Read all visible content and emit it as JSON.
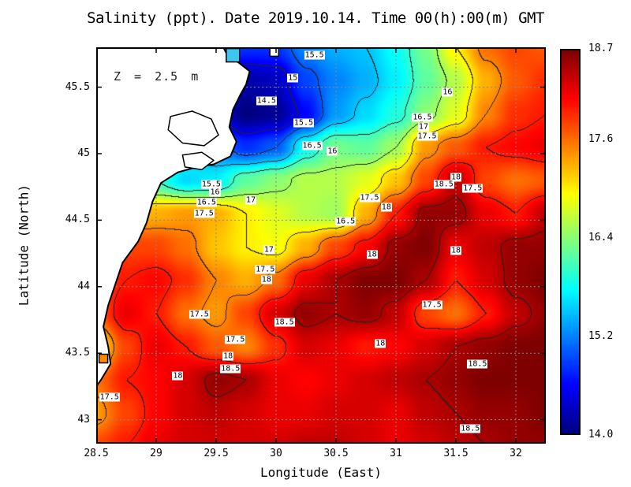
{
  "chart_data": {
    "type": "heatmap",
    "title": "Salinity (ppt). Date 2019.10.14. Time 00(h):00(m) GMT",
    "annotation": "Z = 2.5 m",
    "xlabel": "Longitude (East)",
    "ylabel": "Latitude (North)",
    "lon_range": [
      28.5,
      32.25
    ],
    "lat_range": [
      42.82,
      45.8
    ],
    "vmin": 14.0,
    "vmax": 18.7,
    "colormap": "jet",
    "contour_interval": 0.5,
    "contour_levels": [
      14.5,
      15,
      15.5,
      16,
      16.5,
      17,
      17.5,
      18,
      18.5
    ],
    "x_ticks": [
      {
        "v": 28.5,
        "label": "28.5"
      },
      {
        "v": 29,
        "label": "29"
      },
      {
        "v": 29.5,
        "label": "29.5"
      },
      {
        "v": 30,
        "label": "30"
      },
      {
        "v": 30.5,
        "label": "30.5"
      },
      {
        "v": 31,
        "label": "31"
      },
      {
        "v": 31.5,
        "label": "31.5"
      },
      {
        "v": 32,
        "label": "32"
      }
    ],
    "y_ticks": [
      {
        "v": 43,
        "label": "43"
      },
      {
        "v": 43.5,
        "label": "43.5"
      },
      {
        "v": 44,
        "label": "44"
      },
      {
        "v": 44.5,
        "label": "44.5"
      },
      {
        "v": 45,
        "label": "45"
      },
      {
        "v": 45.5,
        "label": "45.5"
      }
    ],
    "colorbar": {
      "min": 14.0,
      "max": 18.7,
      "ticks": [
        {
          "f": 1.0,
          "label": "18.7"
        },
        {
          "f": 0.766,
          "label": "17.6"
        },
        {
          "f": 0.511,
          "label": "16.4"
        },
        {
          "f": 0.255,
          "label": "15.2"
        },
        {
          "f": 0.0,
          "label": "14.0"
        }
      ]
    },
    "grid": {
      "lon": [
        28.5,
        28.75,
        29.0,
        29.25,
        29.5,
        29.75,
        30.0,
        30.25,
        30.5,
        30.75,
        31.0,
        31.25,
        31.5,
        31.75,
        32.0,
        32.25
      ],
      "lat": [
        45.8,
        45.55,
        45.3,
        45.05,
        44.8,
        44.55,
        44.3,
        44.05,
        43.8,
        43.55,
        43.3,
        43.05,
        42.8
      ],
      "values": [
        [
          16.0,
          16.0,
          16.0,
          15.5,
          15.0,
          14.8,
          14.8,
          15.2,
          15.4,
          15.5,
          15.8,
          16.3,
          17.0,
          17.6,
          17.8,
          17.7
        ],
        [
          16.0,
          16.0,
          15.8,
          15.2,
          14.6,
          14.2,
          14.3,
          14.9,
          15.2,
          15.4,
          15.7,
          16.2,
          16.6,
          17.3,
          17.7,
          17.9
        ],
        [
          16.0,
          16.0,
          15.5,
          15.0,
          14.5,
          14.0,
          14.1,
          14.6,
          15.3,
          15.6,
          15.9,
          16.4,
          16.8,
          17.5,
          17.9,
          18.0
        ],
        [
          16.5,
          16.3,
          16.0,
          15.8,
          15.2,
          14.8,
          15.0,
          15.8,
          16.3,
          16.2,
          16.5,
          17.4,
          17.7,
          18.0,
          18.1,
          18.2
        ],
        [
          16.5,
          16.4,
          16.0,
          15.6,
          15.7,
          16.2,
          16.4,
          16.6,
          16.6,
          16.8,
          17.2,
          17.8,
          18.4,
          17.8,
          17.6,
          17.7
        ],
        [
          17.0,
          17.2,
          17.3,
          17.4,
          17.3,
          17.0,
          16.8,
          16.6,
          16.5,
          17.3,
          18.0,
          18.6,
          18.6,
          18.2,
          18.0,
          18.4
        ],
        [
          17.6,
          17.8,
          17.8,
          17.6,
          17.2,
          17.0,
          16.9,
          17.3,
          17.8,
          18.1,
          18.6,
          18.7,
          18.2,
          18.4,
          18.6,
          18.6
        ],
        [
          17.8,
          18.0,
          18.1,
          17.9,
          17.5,
          17.3,
          17.6,
          18.2,
          18.5,
          18.7,
          18.7,
          18.5,
          18.0,
          18.3,
          18.6,
          18.7
        ],
        [
          17.7,
          18.2,
          18.0,
          17.6,
          17.4,
          17.8,
          18.3,
          18.6,
          18.5,
          18.6,
          18.4,
          17.8,
          17.6,
          18.0,
          18.4,
          18.6
        ],
        [
          17.0,
          17.8,
          18.2,
          18.0,
          17.7,
          17.5,
          17.9,
          18.3,
          18.2,
          18.0,
          18.1,
          18.3,
          18.5,
          18.6,
          18.7,
          18.7
        ],
        [
          17.6,
          18.0,
          18.1,
          18.3,
          18.6,
          18.5,
          18.2,
          18.1,
          18.2,
          18.3,
          18.4,
          18.5,
          18.6,
          18.7,
          18.7,
          18.7
        ],
        [
          17.4,
          17.8,
          18.1,
          18.3,
          18.4,
          18.3,
          18.2,
          18.2,
          18.3,
          18.3,
          18.2,
          18.4,
          18.5,
          18.6,
          18.6,
          18.7
        ],
        [
          17.8,
          18.0,
          18.2,
          18.3,
          18.3,
          18.3,
          18.3,
          18.4,
          18.4,
          18.3,
          18.2,
          18.3,
          18.4,
          18.5,
          18.6,
          18.6
        ]
      ]
    },
    "contour_labels": [
      {
        "v": "15.5",
        "lon": 30.32,
        "lat": 45.74
      },
      {
        "v": "15",
        "lon": 30.14,
        "lat": 45.57
      },
      {
        "v": "14.5",
        "lon": 29.92,
        "lat": 45.4
      },
      {
        "v": "15.5",
        "lon": 30.23,
        "lat": 45.23
      },
      {
        "v": "16.5",
        "lon": 30.3,
        "lat": 45.06
      },
      {
        "v": "16",
        "lon": 30.47,
        "lat": 45.02
      },
      {
        "v": "16",
        "lon": 31.43,
        "lat": 45.46
      },
      {
        "v": "16.5",
        "lon": 31.22,
        "lat": 45.27
      },
      {
        "v": "17",
        "lon": 31.23,
        "lat": 45.2
      },
      {
        "v": "17.5",
        "lon": 31.26,
        "lat": 45.13
      },
      {
        "v": "15.5",
        "lon": 29.46,
        "lat": 44.77
      },
      {
        "v": "16",
        "lon": 29.49,
        "lat": 44.71
      },
      {
        "v": "16.5",
        "lon": 29.42,
        "lat": 44.63
      },
      {
        "v": "17",
        "lon": 29.79,
        "lat": 44.65
      },
      {
        "v": "17.5",
        "lon": 29.4,
        "lat": 44.55
      },
      {
        "v": "18",
        "lon": 31.5,
        "lat": 44.82
      },
      {
        "v": "18.5",
        "lon": 31.4,
        "lat": 44.77
      },
      {
        "v": "17.5",
        "lon": 31.64,
        "lat": 44.74
      },
      {
        "v": "17.5",
        "lon": 30.78,
        "lat": 44.67
      },
      {
        "v": "18",
        "lon": 30.92,
        "lat": 44.6
      },
      {
        "v": "16.5",
        "lon": 30.58,
        "lat": 44.49
      },
      {
        "v": "17",
        "lon": 29.94,
        "lat": 44.28
      },
      {
        "v": "18",
        "lon": 30.8,
        "lat": 44.24
      },
      {
        "v": "18",
        "lon": 31.5,
        "lat": 44.27
      },
      {
        "v": "17.5",
        "lon": 29.91,
        "lat": 44.13
      },
      {
        "v": "18",
        "lon": 29.92,
        "lat": 44.05
      },
      {
        "v": "17.5",
        "lon": 31.3,
        "lat": 43.86
      },
      {
        "v": "17.5",
        "lon": 29.36,
        "lat": 43.79
      },
      {
        "v": "18.5",
        "lon": 30.07,
        "lat": 43.73
      },
      {
        "v": "17.5",
        "lon": 29.66,
        "lat": 43.6
      },
      {
        "v": "18",
        "lon": 30.87,
        "lat": 43.57
      },
      {
        "v": "18",
        "lon": 29.6,
        "lat": 43.48
      },
      {
        "v": "18.5",
        "lon": 29.62,
        "lat": 43.38
      },
      {
        "v": "18",
        "lon": 29.18,
        "lat": 43.33
      },
      {
        "v": "18.5",
        "lon": 31.68,
        "lat": 43.42
      },
      {
        "v": "17.5",
        "lon": 28.61,
        "lat": 43.17
      },
      {
        "v": "18.5",
        "lon": 31.62,
        "lat": 42.93
      }
    ],
    "coastline": [
      [
        28.5,
        45.8
      ],
      [
        29.56,
        45.8
      ],
      [
        29.6,
        45.73
      ],
      [
        29.68,
        45.69
      ],
      [
        29.78,
        45.62
      ],
      [
        29.75,
        45.52
      ],
      [
        29.7,
        45.44
      ],
      [
        29.64,
        45.33
      ],
      [
        29.61,
        45.2
      ],
      [
        29.67,
        45.09
      ],
      [
        29.62,
        44.98
      ],
      [
        29.48,
        44.92
      ],
      [
        29.34,
        44.9
      ],
      [
        29.18,
        44.86
      ],
      [
        29.04,
        44.78
      ],
      [
        28.97,
        44.64
      ],
      [
        28.92,
        44.48
      ],
      [
        28.85,
        44.34
      ],
      [
        28.72,
        44.18
      ],
      [
        28.66,
        44.02
      ],
      [
        28.6,
        43.86
      ],
      [
        28.56,
        43.7
      ],
      [
        28.6,
        43.55
      ],
      [
        28.62,
        43.42
      ],
      [
        28.54,
        43.3
      ],
      [
        28.5,
        43.25
      ]
    ],
    "lakes": [
      [
        [
          29.12,
          45.28
        ],
        [
          29.3,
          45.32
        ],
        [
          29.46,
          45.26
        ],
        [
          29.52,
          45.14
        ],
        [
          29.4,
          45.06
        ],
        [
          29.22,
          45.08
        ],
        [
          29.1,
          45.18
        ]
      ],
      [
        [
          29.22,
          44.99
        ],
        [
          29.38,
          45.01
        ],
        [
          29.48,
          44.95
        ],
        [
          29.38,
          44.88
        ],
        [
          29.24,
          44.9
        ]
      ]
    ],
    "markers": [
      {
        "lon": 29.64,
        "lat": 45.74,
        "size": 17,
        "fill": "#3cc6f0"
      },
      {
        "lon": 29.985,
        "lat": 45.765,
        "size": 11,
        "fill": "#ffffff"
      },
      {
        "lon": 28.56,
        "lat": 43.46,
        "size": 11,
        "fill": "#ff8800"
      }
    ]
  }
}
